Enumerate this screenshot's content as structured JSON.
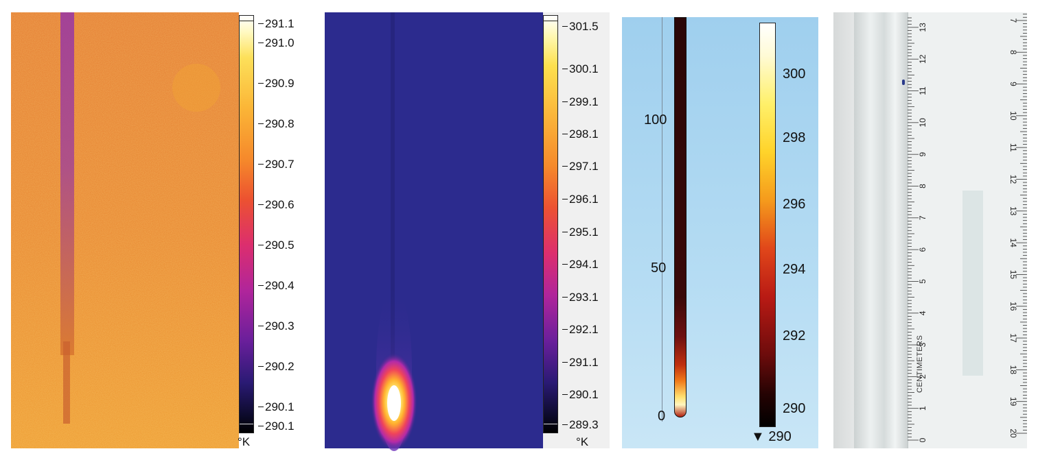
{
  "panel1": {
    "colorbar_ticks": [
      "291.1",
      "291.0",
      "290.9",
      "290.8",
      "290.7",
      "290.6",
      "290.5",
      "290.4",
      "290.3",
      "290.2",
      "290.1",
      "290.1"
    ],
    "unit": "°K",
    "colors": {
      "background": "#e8862f",
      "stripe": "#9b3f9a",
      "palette": "ironbow"
    }
  },
  "panel2": {
    "colorbar_ticks": [
      "301.5",
      "300.1",
      "299.1",
      "298.1",
      "297.1",
      "296.1",
      "295.1",
      "294.1",
      "293.1",
      "292.1",
      "291.1",
      "290.1",
      "289.3"
    ],
    "unit": "°K",
    "colors": {
      "background": "#2b2a8c",
      "hotspot": "#ffffff",
      "palette": "ironbow"
    }
  },
  "panel3": {
    "axis_ticks": [
      "100",
      "50",
      "0"
    ],
    "colorbar_ticks": [
      "300",
      "298",
      "296",
      "294",
      "292",
      "290"
    ],
    "min_marker": "▼ 290",
    "colors": {
      "background": "#a9d6f2",
      "rod": "#3a0a0a",
      "palette": "heat"
    }
  },
  "panel4": {
    "ruler_label": "CENTIMETERS",
    "cm_numbers_rotated": [
      "0",
      "1",
      "2",
      "3",
      "4",
      "5",
      "6",
      "7",
      "8",
      "9",
      "10",
      "11",
      "12",
      "13"
    ],
    "cm_numbers_right": [
      "20",
      "19",
      "18",
      "17",
      "16",
      "15",
      "14",
      "13",
      "12",
      "11",
      "10",
      "9",
      "8",
      "7"
    ],
    "colors": {
      "surface": "#e4e6e6",
      "ruler": "#eef2f2",
      "tube": "#c9cfcf"
    }
  }
}
